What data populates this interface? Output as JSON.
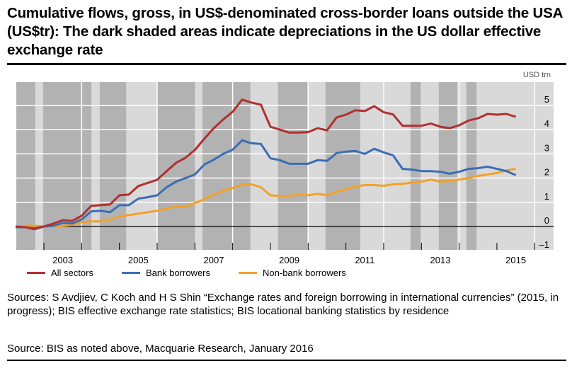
{
  "header": {
    "title": "Cumulative flows, gross, in US$-denominated cross-border loans outside the USA (US$tr): The dark shaded areas indicate depreciations in the US dollar effective exchange rate"
  },
  "footer": {
    "sources": "Sources: S Avdjiev, C Koch and H S Shin “Exchange rates and foreign borrowing in international currencies” (2015, in progress); BIS effective exchange rate statistics; BIS locational banking statistics by residence",
    "source_line": "Source: BIS as noted above, Macquarie Research, January 2016"
  },
  "colors": {
    "dark_band": "#b2b2b2",
    "light_band": "#d9d9d9",
    "all_sectors": "#b22f2f",
    "bank": "#3a6db5",
    "nonbank": "#f2a127"
  },
  "chart_data": {
    "type": "line",
    "title": "Cumulative flows, gross, in US$-denominated cross-border loans outside the USA (US$tr)",
    "unit_label": "USD trn",
    "xlabel": "",
    "ylabel": "USD trn",
    "xlim": [
      2002.27,
      2016.5
    ],
    "ylim": [
      -1,
      6
    ],
    "y_ticks": [
      5,
      4,
      3,
      2,
      1,
      0,
      -1
    ],
    "y_tick_labels": [
      "5",
      "4",
      "3",
      "2",
      "1",
      "0",
      "–1"
    ],
    "x_tick_boundaries": [
      2003,
      2004,
      2005,
      2006,
      2007,
      2008,
      2009,
      2010,
      2011,
      2012,
      2013,
      2014,
      2015,
      2016
    ],
    "x_labels": [
      {
        "label": "2003",
        "year": 2003
      },
      {
        "label": "2005",
        "year": 2005
      },
      {
        "label": "2007",
        "year": 2007
      },
      {
        "label": "2009",
        "year": 2009
      },
      {
        "label": "2011",
        "year": 2011
      },
      {
        "label": "2013",
        "year": 2013
      },
      {
        "label": "2015",
        "year": 2015
      }
    ],
    "vertical_gridlines": [
      2004,
      2006,
      2008,
      2010,
      2012,
      2014,
      2016
    ],
    "grid": true,
    "legend_position": "bottom-left",
    "depreciation_periods": [
      [
        2002.27,
        2002.77
      ],
      [
        2002.98,
        2004.26
      ],
      [
        2004.48,
        2005.18
      ],
      [
        2006.0,
        2007.0
      ],
      [
        2007.2,
        2008.47
      ],
      [
        2009.2,
        2009.98
      ],
      [
        2010.46,
        2011.38
      ],
      [
        2012.71,
        2012.98
      ],
      [
        2013.46,
        2013.95
      ],
      [
        2014.19,
        2014.46
      ]
    ],
    "x": [
      2002.25,
      2002.5,
      2002.75,
      2003.0,
      2003.25,
      2003.5,
      2003.75,
      2004.0,
      2004.25,
      2004.5,
      2004.75,
      2005.0,
      2005.25,
      2005.5,
      2005.75,
      2006.0,
      2006.25,
      2006.5,
      2006.75,
      2007.0,
      2007.25,
      2007.5,
      2007.75,
      2008.0,
      2008.25,
      2008.5,
      2008.75,
      2009.0,
      2009.25,
      2009.5,
      2009.75,
      2010.0,
      2010.25,
      2010.5,
      2010.75,
      2011.0,
      2011.25,
      2011.5,
      2011.75,
      2012.0,
      2012.25,
      2012.5,
      2012.75,
      2013.0,
      2013.25,
      2013.5,
      2013.75,
      2014.0,
      2014.25,
      2014.5,
      2014.75,
      2015.0,
      2015.25,
      2015.5
    ],
    "series": [
      {
        "name": "All sectors",
        "color": "#b22f2f",
        "values": [
          0.0,
          -0.03,
          -0.08,
          0.0,
          0.12,
          0.26,
          0.23,
          0.44,
          0.85,
          0.88,
          0.91,
          1.29,
          1.32,
          1.67,
          1.8,
          1.93,
          2.28,
          2.63,
          2.84,
          3.16,
          3.63,
          4.06,
          4.42,
          4.74,
          5.24,
          5.12,
          5.03,
          4.12,
          4.0,
          3.88,
          3.88,
          3.9,
          4.06,
          3.97,
          4.5,
          4.62,
          4.8,
          4.77,
          4.97,
          4.72,
          4.63,
          4.16,
          4.16,
          4.16,
          4.25,
          4.12,
          4.06,
          4.18,
          4.38,
          4.47,
          4.65,
          4.62,
          4.65,
          4.53
        ]
      },
      {
        "name": "Bank borrowers",
        "color": "#3a6db5",
        "values": [
          -0.03,
          -0.03,
          -0.12,
          0.0,
          0.03,
          0.15,
          0.12,
          0.29,
          0.62,
          0.65,
          0.59,
          0.88,
          0.88,
          1.15,
          1.21,
          1.29,
          1.62,
          1.85,
          2.0,
          2.15,
          2.56,
          2.76,
          3.0,
          3.17,
          3.56,
          3.44,
          3.41,
          2.82,
          2.74,
          2.59,
          2.59,
          2.59,
          2.74,
          2.71,
          3.03,
          3.09,
          3.12,
          3.0,
          3.21,
          3.06,
          2.94,
          2.38,
          2.35,
          2.29,
          2.29,
          2.26,
          2.18,
          2.26,
          2.38,
          2.41,
          2.47,
          2.38,
          2.29,
          2.12
        ]
      },
      {
        "name": "Non-bank borrowers",
        "color": "#f2a127",
        "values": [
          0.0,
          0.03,
          0.03,
          0.0,
          0.0,
          0.03,
          0.06,
          0.18,
          0.21,
          0.21,
          0.29,
          0.41,
          0.47,
          0.53,
          0.59,
          0.65,
          0.74,
          0.82,
          0.82,
          0.97,
          1.12,
          1.32,
          1.47,
          1.59,
          1.71,
          1.74,
          1.62,
          1.29,
          1.26,
          1.26,
          1.32,
          1.29,
          1.35,
          1.29,
          1.44,
          1.53,
          1.65,
          1.71,
          1.71,
          1.68,
          1.74,
          1.76,
          1.82,
          1.85,
          1.94,
          1.85,
          1.88,
          1.94,
          2.0,
          2.09,
          2.15,
          2.21,
          2.32,
          2.38
        ]
      }
    ]
  }
}
